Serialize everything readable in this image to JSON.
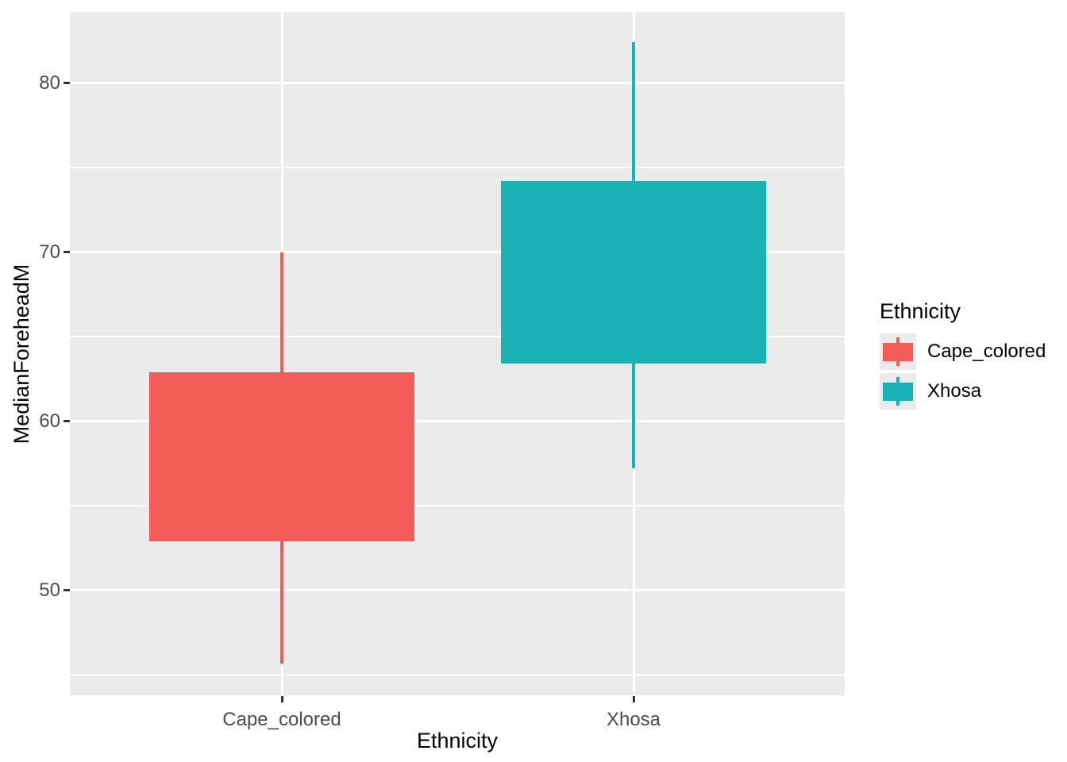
{
  "figure": {
    "background": "#FFFFFF",
    "panel_bg": "#EBEBEB",
    "grid_color": "#FFFFFF",
    "tick_mark_color": "#333333",
    "axis_text_color": "#4D4D4D",
    "axis_title_color": "#000000",
    "legend_text_color": "#000000",
    "legend_key_bg": "#EBEBEB"
  },
  "chart_data": {
    "type": "boxplot",
    "title": "",
    "xlabel": "Ethnicity",
    "ylabel": "MedianForeheadM",
    "categories": [
      "Cape_colored",
      "Xhosa"
    ],
    "y_axis": {
      "major_ticks": [
        50,
        60,
        70,
        80
      ],
      "minor_ticks": [
        45,
        55,
        65,
        75
      ],
      "range": [
        43.8,
        84.2
      ],
      "grid": true
    },
    "series": [
      {
        "name": "Cape_colored",
        "color": "#F45C5A",
        "whisker_low": 45.7,
        "q1": 52.9,
        "q3": 62.9,
        "whisker_high": 70.0
      },
      {
        "name": "Xhosa",
        "color": "#1AB2B5",
        "whisker_low": 57.2,
        "q1": 63.4,
        "q3": 74.2,
        "whisker_high": 82.4
      }
    ],
    "legend": {
      "title": "Ethnicity",
      "position": "right",
      "items": [
        {
          "label": "Cape_colored",
          "color": "#F45C5A"
        },
        {
          "label": "Xhosa",
          "color": "#1AB2B5"
        }
      ]
    }
  }
}
